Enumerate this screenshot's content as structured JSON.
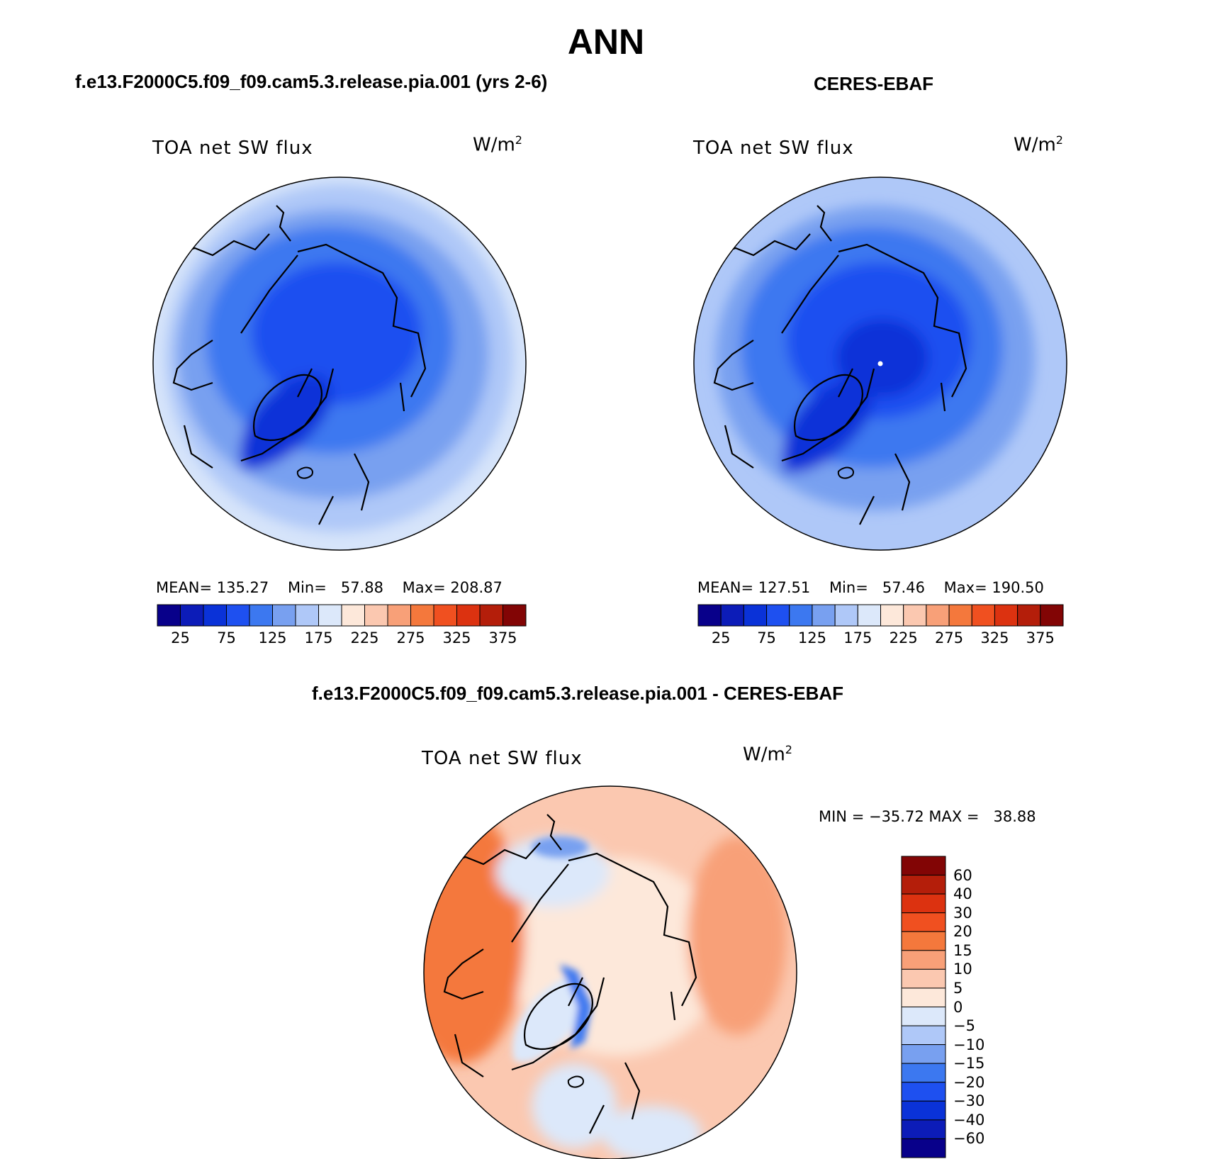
{
  "page": {
    "title": "ANN"
  },
  "panels": [
    {
      "case_title": "f.e13.F2000C5.f09_f09.cam5.3.release.pia.001 (yrs 2-6)",
      "label": "TOA net SW flux",
      "units_base": "W/m",
      "units_exp": "2",
      "stats": {
        "mean_label": "MEAN=",
        "mean": "135.27",
        "min_label": "Min=",
        "min": "57.88",
        "max_label": "Max=",
        "max": "208.87"
      }
    },
    {
      "case_title": "CERES-EBAF",
      "label": "TOA net SW flux",
      "units_base": "W/m",
      "units_exp": "2",
      "stats": {
        "mean_label": "MEAN=",
        "mean": "127.51",
        "min_label": "Min=",
        "min": "57.46",
        "max_label": "Max=",
        "max": "190.50"
      }
    }
  ],
  "diff_panel": {
    "case_title": "f.e13.F2000C5.f09_f09.cam5.3.release.pia.001 - CERES-EBAF",
    "label": "TOA net SW flux",
    "units_base": "W/m",
    "units_exp": "2",
    "minmax": "MIN = −35.72 MAX =   38.88"
  },
  "colorbar_main": {
    "colors": [
      "#08008a",
      "#0c1cb8",
      "#0a32d8",
      "#1e50f0",
      "#3c78f0",
      "#78a0f0",
      "#afc8f8",
      "#dce8fa",
      "#fde8da",
      "#fbc8b0",
      "#f8a078",
      "#f4783c",
      "#f05020",
      "#dc3210",
      "#b41e0a",
      "#820505"
    ],
    "tick_labels": [
      "25",
      "75",
      "125",
      "175",
      "225",
      "275",
      "325",
      "375"
    ]
  },
  "colorbar_diff": {
    "colors": [
      "#820505",
      "#b41e0a",
      "#dc3210",
      "#f05020",
      "#f4783c",
      "#f8a078",
      "#fbc8b0",
      "#fde8da",
      "#dce8fa",
      "#afc8f8",
      "#78a0f0",
      "#3c78f0",
      "#1e50f0",
      "#0a32d8",
      "#0c1cb8",
      "#08008a"
    ],
    "tick_labels": [
      "60",
      "40",
      "30",
      "20",
      "15",
      "10",
      "5",
      "0",
      "−5",
      "−10",
      "−15",
      "−20",
      "−30",
      "−40",
      "−60"
    ]
  }
}
